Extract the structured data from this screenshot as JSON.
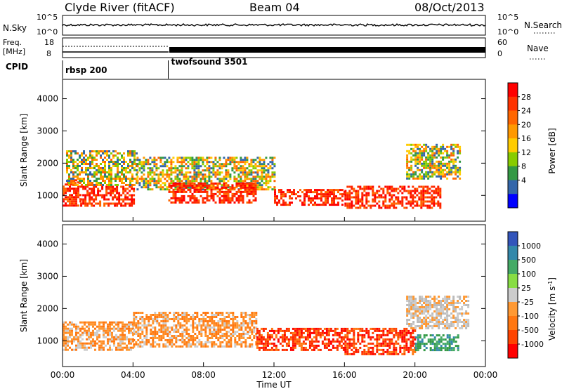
{
  "header": {
    "station": "Clyde River (fitACF)",
    "beam": "Beam 04",
    "date": "08/Oct/2013"
  },
  "summary_panels": {
    "nsky": {
      "left_label": "N.Sky",
      "left_ticks": [
        "10^5",
        "10^0"
      ],
      "right_label": "N.Search",
      "right_ticks": [
        "10^5",
        "10^0"
      ]
    },
    "freq": {
      "left_label_line1": "Freq.",
      "left_label_line2": "[MHz]",
      "left_ticks": [
        "18",
        "8"
      ],
      "right_label": "Nave",
      "right_ticks": [
        "60",
        "0"
      ]
    },
    "cpid": {
      "label": "CPID",
      "segments": [
        {
          "name": "rbsp 200",
          "start_hour": 0
        },
        {
          "name": "twofsound 3501",
          "start_hour": 6
        }
      ]
    }
  },
  "chart_data": [
    {
      "type": "heatmap",
      "parameter": "power",
      "ylabel": "Slant Range [km]",
      "xlabel": "",
      "xlim": [
        0,
        24
      ],
      "ylim": [
        200,
        4600
      ],
      "yticks": [
        "1000",
        "2000",
        "3000",
        "4000"
      ],
      "colorbar": {
        "label": "Power [dB]",
        "ticks": [
          "28",
          "24",
          "20",
          "16",
          "12",
          "8",
          "4"
        ],
        "colors": [
          "#ff0000",
          "#ff3300",
          "#ff6600",
          "#ff9900",
          "#ffcc00",
          "#88cc00",
          "#339944",
          "#3366aa",
          "#0000ff"
        ]
      },
      "regions": [
        {
          "t0": 0.0,
          "t1": 1.0,
          "r0": 700,
          "r1": 1500,
          "level": "high"
        },
        {
          "t0": 1.0,
          "t1": 4.0,
          "r0": 700,
          "r1": 1300,
          "level": "high"
        },
        {
          "t0": 0.2,
          "t1": 4.2,
          "r0": 1300,
          "r1": 2400,
          "level": "mid"
        },
        {
          "t0": 4.2,
          "t1": 12.0,
          "r0": 1200,
          "r1": 2200,
          "level": "mid"
        },
        {
          "t0": 6.0,
          "t1": 11.0,
          "r0": 800,
          "r1": 1400,
          "level": "high"
        },
        {
          "t0": 12.0,
          "t1": 16.0,
          "r0": 700,
          "r1": 1200,
          "level": "high"
        },
        {
          "t0": 16.0,
          "t1": 21.5,
          "r0": 600,
          "r1": 1300,
          "level": "high"
        },
        {
          "t0": 19.5,
          "t1": 22.5,
          "r0": 1500,
          "r1": 2600,
          "level": "mid"
        }
      ]
    },
    {
      "type": "heatmap",
      "parameter": "velocity",
      "ylabel": "Slant Range [km]",
      "xlabel": "Time UT",
      "xlim": [
        0,
        24
      ],
      "ylim": [
        200,
        4600
      ],
      "xticks": [
        "00:00",
        "04:00",
        "08:00",
        "12:00",
        "16:00",
        "20:00",
        "00:00"
      ],
      "yticks": [
        "1000",
        "2000",
        "3000",
        "4000"
      ],
      "colorbar": {
        "label": "Velocity [m s",
        "unit_superscript": "-1",
        "unit_close": "]",
        "ticks": [
          "1000",
          "500",
          "100",
          "25",
          "-25",
          "-100",
          "-500",
          "-1000"
        ],
        "colors": [
          "#3355bb",
          "#3388aa",
          "#44aa66",
          "#88dd44",
          "#cccccc",
          "#ff9933",
          "#ff7711",
          "#ff4400",
          "#ff0000"
        ]
      },
      "regions": [
        {
          "t0": 0.0,
          "t1": 4.0,
          "r0": 700,
          "r1": 1600,
          "level": "neg"
        },
        {
          "t0": 4.0,
          "t1": 11.0,
          "r0": 800,
          "r1": 1900,
          "level": "neg"
        },
        {
          "t0": 11.0,
          "t1": 16.0,
          "r0": 700,
          "r1": 1400,
          "level": "strongneg"
        },
        {
          "t0": 16.0,
          "t1": 20.0,
          "r0": 600,
          "r1": 1400,
          "level": "strongneg"
        },
        {
          "t0": 20.0,
          "t1": 22.5,
          "r0": 700,
          "r1": 1200,
          "level": "pos"
        },
        {
          "t0": 19.5,
          "t1": 23.0,
          "r0": 1400,
          "r1": 2400,
          "level": "zero"
        }
      ]
    }
  ]
}
